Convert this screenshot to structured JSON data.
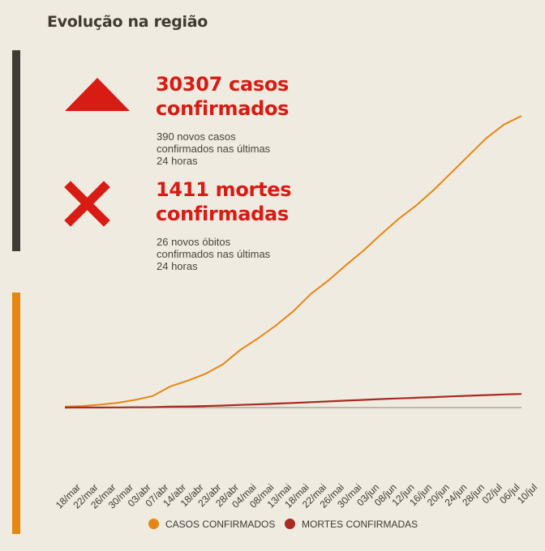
{
  "header": {
    "title": "Evolução na região"
  },
  "stats": {
    "cases_count_line": "30307 casos",
    "cases_word_line": "confirmados",
    "cases_new_1": "390 novos casos",
    "cases_new_2": "confirmados nas últimas",
    "cases_new_3": "24 horas",
    "deaths_count_line": "1411 mortes",
    "deaths_word_line": "confirmadas",
    "deaths_new_1": "26 novos óbitos",
    "deaths_new_2": "confirmados nas últimas",
    "deaths_new_3": "24 horas"
  },
  "icons": {
    "cases": "triangle-up-icon",
    "deaths": "x-icon"
  },
  "colors": {
    "cases": "#e58612",
    "deaths": "#a82a20",
    "accent_red": "#d81b13",
    "dark_bar": "#403c35"
  },
  "chart_data": {
    "type": "line",
    "x": [
      "18/mar",
      "22/mar",
      "26/mar",
      "30/mar",
      "03/abr",
      "07/abr",
      "14/abr",
      "18/abr",
      "23/abr",
      "28/abr",
      "04/mai",
      "08/mai",
      "13/mai",
      "18/mai",
      "22/mai",
      "26/mai",
      "30/mai",
      "03/jun",
      "08/jun",
      "12/jun",
      "16/jun",
      "20/jun",
      "24/jun",
      "28/jun",
      "02/jul",
      "06/jul",
      "10/jul"
    ],
    "series": [
      {
        "name": "CASOS CONFIRMADOS",
        "color": "#e58612",
        "values": [
          100,
          160,
          300,
          500,
          800,
          1200,
          2200,
          2800,
          3500,
          4500,
          6000,
          7200,
          8500,
          10000,
          11800,
          13200,
          14800,
          16300,
          18000,
          19600,
          21000,
          22600,
          24400,
          26200,
          28000,
          29400,
          30307
        ]
      },
      {
        "name": "MORTES CONFIRMADAS",
        "color": "#a82a20",
        "values": [
          2,
          5,
          10,
          18,
          30,
          45,
          90,
          120,
          160,
          210,
          280,
          340,
          410,
          480,
          560,
          640,
          720,
          800,
          880,
          950,
          1020,
          1090,
          1160,
          1230,
          1300,
          1360,
          1411
        ]
      }
    ],
    "ylim": [
      0,
      32000
    ],
    "legend": "bottom",
    "grid": false
  }
}
